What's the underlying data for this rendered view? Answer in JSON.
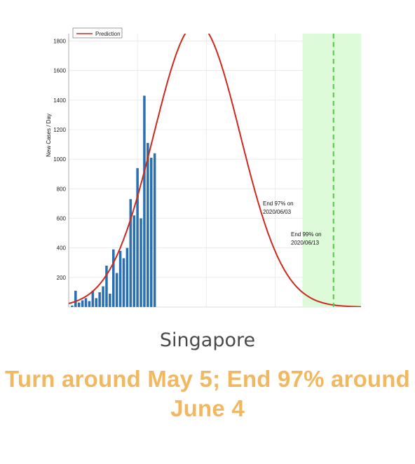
{
  "chart_data": {
    "type": "bar+line",
    "ylabel": "New Cases / Day",
    "ylim": [
      0,
      1850
    ],
    "yticks": [
      200,
      400,
      600,
      800,
      1000,
      1200,
      1400,
      1600,
      1800
    ],
    "xlim": [
      0,
      85
    ],
    "legend": {
      "entries": [
        "Prediction"
      ],
      "placement": "top-left"
    },
    "grid": true,
    "bars": {
      "name": "",
      "x": [
        1,
        2,
        3,
        4,
        5,
        6,
        7,
        8,
        9,
        10,
        11,
        12,
        13,
        14,
        15,
        16,
        17,
        18,
        19,
        20,
        21,
        22,
        23,
        24,
        25
      ],
      "values": [
        10,
        110,
        30,
        45,
        60,
        40,
        110,
        60,
        100,
        140,
        280,
        90,
        390,
        230,
        380,
        330,
        400,
        730,
        620,
        940,
        600,
        1430,
        1110,
        1010,
        1040
      ]
    },
    "prediction": {
      "name": "Prediction",
      "peak_x": 37.3,
      "peak_y": 1920,
      "sigma": 12.6,
      "baseline": 0
    },
    "shaded_region": {
      "x_from": 68,
      "x_to": 100
    },
    "annotations": [
      {
        "text_line1": "End 97% on",
        "text_line2": "2020/06/03",
        "x": 67,
        "y": 650
      },
      {
        "text_line1": "End 99% on",
        "text_line2": "2020/06/13",
        "x": 77,
        "y": 455
      }
    ],
    "vline_x": 77
  },
  "caption": {
    "country": "Singapore",
    "headline": "Turn around May 5; End 97% around June 4"
  },
  "colors": {
    "bars": "#2a6fb0",
    "prediction": "#cc2a1e",
    "shade": "#ddfbd8",
    "vline": "#58c84a",
    "headline": "#f2b861"
  }
}
